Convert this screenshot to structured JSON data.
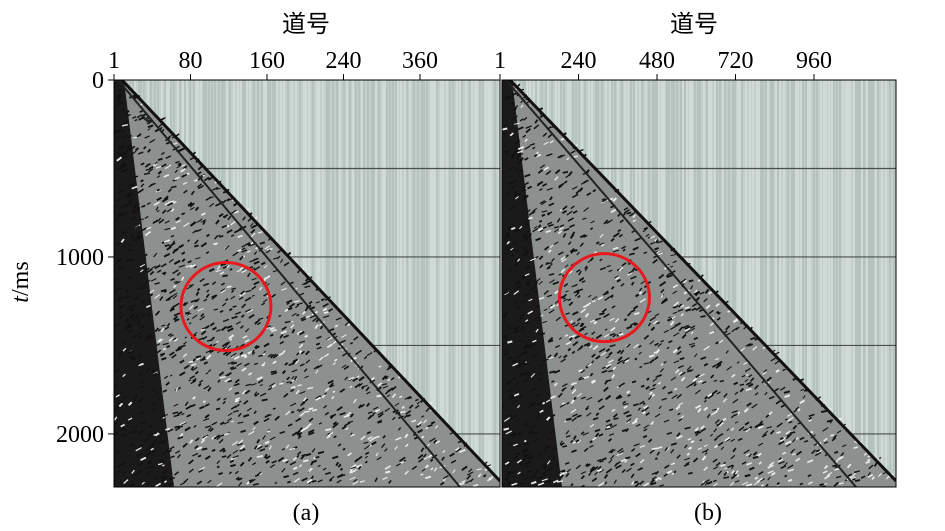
{
  "chart_data": [
    {
      "type": "heatmap",
      "panel_label": "(a)",
      "xlabel": "道号",
      "ylabel_italic": "t",
      "ylabel_unit": "/ms",
      "x_ticks": [
        "1",
        "80",
        "160",
        "240",
        "360"
      ],
      "y_ticks": [
        "0",
        "1000",
        "2000"
      ],
      "ylim": [
        0,
        2300
      ],
      "annotation": {
        "shape": "circle",
        "color": "#e8191d",
        "center_trace_fraction": 0.29,
        "center_time_ms": 1280
      }
    },
    {
      "type": "heatmap",
      "panel_label": "(b)",
      "xlabel": "道号",
      "x_ticks": [
        "1",
        "240",
        "480",
        "720",
        "960"
      ],
      "ylim": [
        0,
        2300
      ],
      "annotation": {
        "shape": "circle",
        "color": "#e8191d",
        "center_trace_fraction": 0.26,
        "center_time_ms": 1230
      }
    }
  ],
  "colors": {
    "background_trace": "#c3cfcb",
    "wavefield": "#111111",
    "annotation": "#e8191d"
  }
}
